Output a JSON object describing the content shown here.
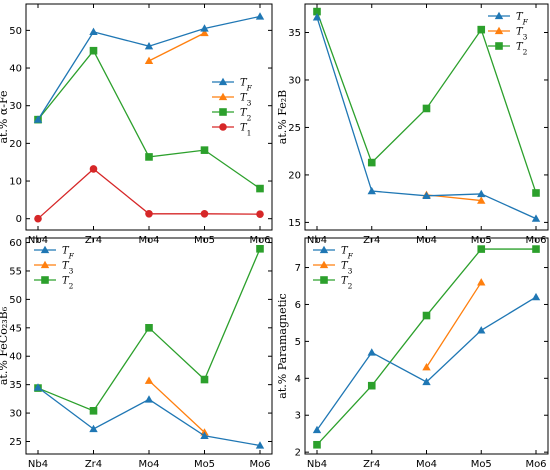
{
  "colors": {
    "TF": "#1f77b4",
    "T3": "#ff7f0e",
    "T2": "#2ca02c",
    "T1": "#d62728"
  },
  "chart_data": [
    {
      "type": "line",
      "ylabel": "at.% α-Fe",
      "categories": [
        "Nb4",
        "Zr4",
        "Mo4",
        "Mo5",
        "Mo6"
      ],
      "ylim": [
        -3,
        57
      ],
      "yticks": [
        0,
        10,
        20,
        30,
        40,
        50
      ],
      "legend_position": "center-right",
      "grid": false,
      "series": [
        {
          "name": "T_F",
          "color_key": "TF",
          "marker": "triangle",
          "values": [
            26.3,
            49.6,
            45.8,
            50.5,
            53.7
          ]
        },
        {
          "name": "T_3",
          "color_key": "T3",
          "marker": "triangle",
          "values": [
            null,
            null,
            41.9,
            49.3,
            null
          ]
        },
        {
          "name": "T_2",
          "color_key": "T2",
          "marker": "square",
          "values": [
            26.3,
            44.6,
            16.4,
            18.2,
            8.0
          ]
        },
        {
          "name": "T_1",
          "color_key": "T1",
          "marker": "circle",
          "values": [
            0,
            13.2,
            1.3,
            1.3,
            1.2
          ]
        }
      ]
    },
    {
      "type": "line",
      "ylabel": "at.% Fe₂B",
      "categories": [
        "Nb4",
        "Zr4",
        "Mo4",
        "Mo5",
        "Mo6"
      ],
      "ylim": [
        14.2,
        38
      ],
      "yticks": [
        15,
        20,
        25,
        30,
        35
      ],
      "legend_position": "top-right",
      "grid": false,
      "series": [
        {
          "name": "T_F",
          "color_key": "TF",
          "marker": "triangle",
          "values": [
            36.6,
            18.3,
            17.8,
            18.0,
            15.4
          ]
        },
        {
          "name": "T_3",
          "color_key": "T3",
          "marker": "triangle",
          "values": [
            null,
            null,
            17.9,
            17.3,
            null
          ]
        },
        {
          "name": "T_2",
          "color_key": "T2",
          "marker": "square",
          "values": [
            37.2,
            21.3,
            27.0,
            35.3,
            18.1
          ]
        }
      ]
    },
    {
      "type": "line",
      "ylabel": "at.% FeCo₂₃B₆",
      "categories": [
        "Nb4",
        "Zr4",
        "Mo4",
        "Mo5",
        "Mo6"
      ],
      "ylim": [
        22.8,
        60.8
      ],
      "yticks": [
        25,
        30,
        35,
        40,
        45,
        50,
        55,
        60
      ],
      "legend_position": "top-left",
      "grid": false,
      "series": [
        {
          "name": "T_F",
          "color_key": "TF",
          "marker": "triangle",
          "values": [
            34.5,
            27.2,
            32.4,
            26.0,
            24.3
          ]
        },
        {
          "name": "T_3",
          "color_key": "T3",
          "marker": "triangle",
          "values": [
            null,
            null,
            35.7,
            26.6,
            null
          ]
        },
        {
          "name": "T_2",
          "color_key": "T2",
          "marker": "square",
          "values": [
            34.4,
            30.4,
            45.0,
            35.9,
            58.9
          ]
        }
      ]
    },
    {
      "type": "line",
      "ylabel": "at.% Paramagnetic",
      "categories": [
        "Nb4",
        "Zr4",
        "Mo4",
        "Mo5",
        "Mo6"
      ],
      "ylim": [
        1.95,
        7.8
      ],
      "yticks": [
        2,
        3,
        4,
        5,
        6,
        7
      ],
      "legend_position": "top-left",
      "grid": false,
      "series": [
        {
          "name": "T_F",
          "color_key": "TF",
          "marker": "triangle",
          "values": [
            2.6,
            4.7,
            3.9,
            5.3,
            6.2
          ]
        },
        {
          "name": "T_3",
          "color_key": "T3",
          "marker": "triangle",
          "values": [
            null,
            null,
            4.3,
            6.6,
            null
          ]
        },
        {
          "name": "T_2",
          "color_key": "T2",
          "marker": "square",
          "values": [
            2.2,
            3.8,
            5.7,
            7.5,
            7.5
          ]
        }
      ]
    }
  ]
}
